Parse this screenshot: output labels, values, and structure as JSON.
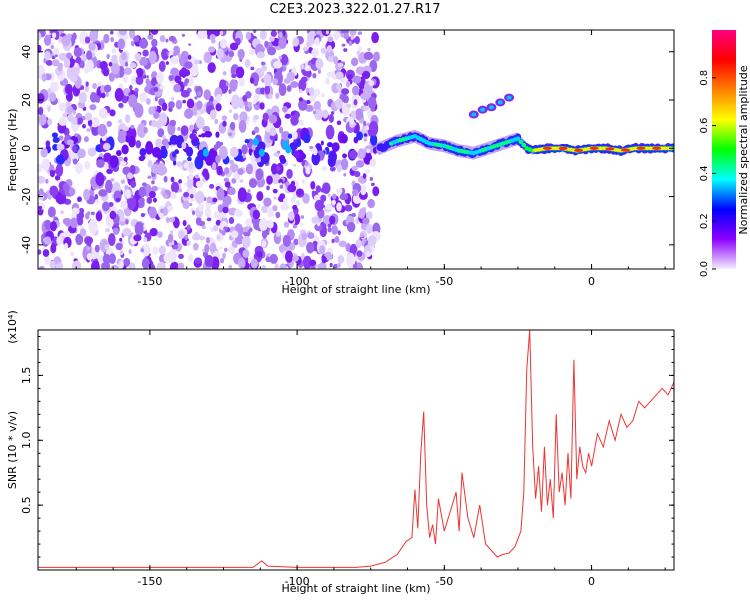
{
  "title": "C2E3.2023.322.01.27.R17",
  "chart_data": [
    {
      "type": "heatmap",
      "xlabel": "Height of straight line (km)",
      "ylabel": "Frequency (Hz)",
      "xlim": [
        -188,
        28
      ],
      "ylim": [
        -50,
        49
      ],
      "xticks": [
        -150,
        -100,
        -50,
        0
      ],
      "xtick_labels": [
        "-150",
        "-100",
        "-50",
        "0"
      ],
      "yticks": [
        -40,
        -20,
        0,
        20,
        40
      ],
      "ytick_labels": [
        "-40",
        "-20",
        "0",
        "20",
        "40"
      ],
      "noise_region_x": [
        -188,
        -73
      ],
      "signal_track": {
        "x": [
          -72,
          -66,
          -60,
          -55,
          -50,
          -45,
          -40,
          -35,
          -30,
          -25,
          -22,
          -20,
          -15,
          -10,
          -5,
          0,
          5,
          10,
          15,
          20,
          25,
          28
        ],
        "y": [
          0,
          3,
          5,
          2,
          1,
          -1,
          -2,
          0,
          2,
          4,
          0,
          -1,
          0,
          0,
          -1,
          0,
          0,
          -1,
          0,
          0,
          0,
          0
        ]
      },
      "secondary_track": {
        "x": [
          -40,
          -37,
          -34,
          -31,
          -28
        ],
        "y": [
          14,
          16,
          17,
          19,
          21
        ]
      },
      "colorbar": {
        "label": "Normalized spectral amplitude",
        "ticks": [
          0.0,
          0.2,
          0.4,
          0.6,
          0.8
        ],
        "tick_labels": [
          "0.0",
          "0.2",
          "0.4",
          "0.6",
          "0.8"
        ],
        "colors": [
          "#f4eefe",
          "#8b00ff",
          "#0000ff",
          "#00ffff",
          "#00ff00",
          "#ffff00",
          "#ff8000",
          "#ff0000",
          "#ff0080"
        ]
      }
    },
    {
      "type": "line",
      "xlabel": "Height of straight line (km)",
      "ylabel": "SNR (10 * v/v)",
      "multiplier": "(x10⁴)",
      "xlim": [
        -188,
        28
      ],
      "ylim": [
        0,
        1.85
      ],
      "xticks": [
        -150,
        -100,
        -50,
        0
      ],
      "xtick_labels": [
        "-150",
        "-100",
        "-50",
        "0"
      ],
      "yticks": [
        0.5,
        1.0,
        1.5
      ],
      "ytick_labels": [
        "0.5",
        "1.0",
        "1.5"
      ],
      "color": "#ee3333",
      "series": [
        {
          "x": [
            -188,
            -175,
            -160,
            -145,
            -130,
            -115,
            -112,
            -110,
            -100,
            -90,
            -80,
            -75,
            -70,
            -66,
            -63,
            -61,
            -60,
            -59,
            -58,
            -57,
            -56,
            -55,
            -54,
            -53,
            -52,
            -50,
            -48,
            -46,
            -45,
            -44,
            -42,
            -40,
            -38,
            -36,
            -34,
            -32,
            -30,
            -28,
            -26,
            -24,
            -23,
            -22,
            -21,
            -20,
            -19,
            -18,
            -17,
            -16,
            -15,
            -14,
            -13,
            -12,
            -11,
            -10,
            -9,
            -8,
            -7,
            -6,
            -5,
            -4,
            -3,
            -2,
            -1,
            0,
            2,
            4,
            6,
            8,
            10,
            12,
            14,
            16,
            18,
            20,
            22,
            24,
            26,
            28
          ],
          "y": [
            0.02,
            0.02,
            0.02,
            0.02,
            0.02,
            0.02,
            0.07,
            0.03,
            0.02,
            0.02,
            0.02,
            0.03,
            0.06,
            0.12,
            0.22,
            0.25,
            0.62,
            0.32,
            0.9,
            1.22,
            0.5,
            0.25,
            0.35,
            0.2,
            0.55,
            0.3,
            0.45,
            0.6,
            0.3,
            0.75,
            0.4,
            0.25,
            0.5,
            0.2,
            0.15,
            0.1,
            0.12,
            0.13,
            0.18,
            0.3,
            0.6,
            1.55,
            1.85,
            0.95,
            0.55,
            0.8,
            0.45,
            0.95,
            0.5,
            0.7,
            0.4,
            1.2,
            0.6,
            0.75,
            0.5,
            0.9,
            0.55,
            1.62,
            0.7,
            0.95,
            0.8,
            0.75,
            0.9,
            0.8,
            1.05,
            0.95,
            1.15,
            1.0,
            1.2,
            1.1,
            1.15,
            1.3,
            1.25,
            1.3,
            1.35,
            1.4,
            1.35,
            1.45
          ]
        }
      ]
    }
  ]
}
